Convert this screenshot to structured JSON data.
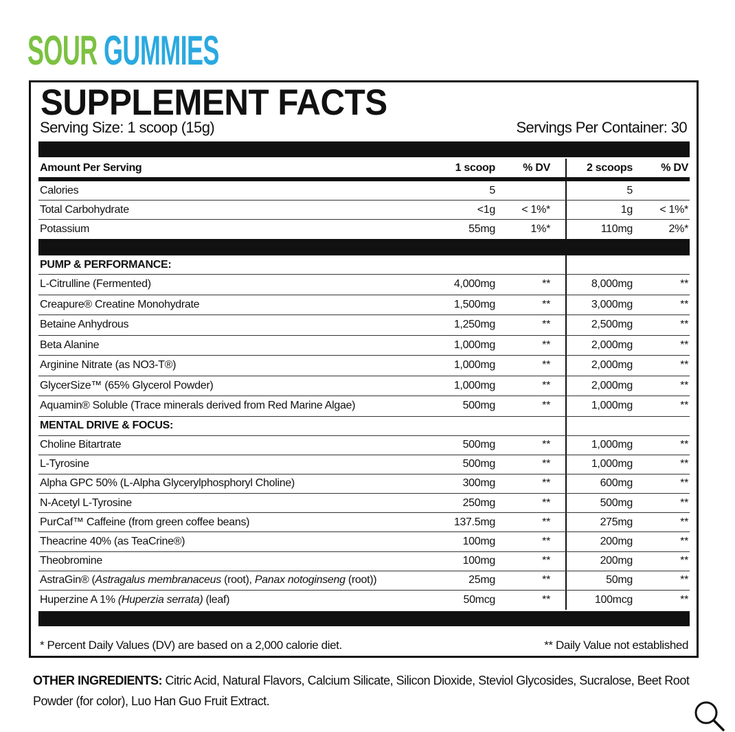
{
  "brand": {
    "word1": "SOUR",
    "word2": "GUMMIES",
    "colors": {
      "word1": "#7cc142",
      "word2": "#2aa9e0"
    }
  },
  "facts": {
    "title": "SUPPLEMENT FACTS",
    "serving_size": "Serving Size: 1 scoop (15g)",
    "servings_per_container": "Servings Per Container: 30",
    "header": {
      "name": "Amount Per Serving",
      "amt1": "1 scoop",
      "dv1": "% DV",
      "amt2": "2 scoops",
      "dv2": "% DV"
    },
    "basic_rows": [
      {
        "name": "Calories",
        "amt1": "5",
        "dv1": "",
        "amt2": "5",
        "dv2": ""
      },
      {
        "name": "Total Carbohydrate",
        "amt1": "<1g",
        "dv1": "< 1%*",
        "amt2": "1g",
        "dv2": "< 1%*"
      },
      {
        "name": "Potassium",
        "amt1": "55mg",
        "dv1": "1%*",
        "amt2": "110mg",
        "dv2": "2%*"
      }
    ],
    "sections": [
      {
        "title": "PUMP & PERFORMANCE:",
        "rows": [
          {
            "name": [
              [
                "L-Citrulline (Fermented)",
                false
              ]
            ],
            "amt1": "4,000mg",
            "dv1": "**",
            "amt2": "8,000mg",
            "dv2": "**"
          },
          {
            "name": [
              [
                "Creapure® Creatine Monohydrate",
                false
              ]
            ],
            "amt1": "1,500mg",
            "dv1": "**",
            "amt2": "3,000mg",
            "dv2": "**"
          },
          {
            "name": [
              [
                "Betaine Anhydrous",
                false
              ]
            ],
            "amt1": "1,250mg",
            "dv1": "**",
            "amt2": "2,500mg",
            "dv2": "**"
          },
          {
            "name": [
              [
                "Beta Alanine",
                false
              ]
            ],
            "amt1": "1,000mg",
            "dv1": "**",
            "amt2": "2,000mg",
            "dv2": "**"
          },
          {
            "name": [
              [
                "Arginine Nitrate (as NO3-T®)",
                false
              ]
            ],
            "amt1": "1,000mg",
            "dv1": "**",
            "amt2": "2,000mg",
            "dv2": "**"
          },
          {
            "name": [
              [
                "GlycerSize™ (65% Glycerol Powder)",
                false
              ]
            ],
            "amt1": "1,000mg",
            "dv1": "**",
            "amt2": "2,000mg",
            "dv2": "**"
          },
          {
            "name": [
              [
                "Aquamin® Soluble (Trace minerals derived from Red Marine Algae)",
                false
              ]
            ],
            "amt1": "500mg",
            "dv1": "**",
            "amt2": "1,000mg",
            "dv2": "**"
          }
        ]
      },
      {
        "title": "MENTAL DRIVE & FOCUS:",
        "rows": [
          {
            "name": [
              [
                "Choline Bitartrate",
                false
              ]
            ],
            "amt1": "500mg",
            "dv1": "**",
            "amt2": "1,000mg",
            "dv2": "**"
          },
          {
            "name": [
              [
                "L-Tyrosine",
                false
              ]
            ],
            "amt1": "500mg",
            "dv1": "**",
            "amt2": "1,000mg",
            "dv2": "**"
          },
          {
            "name": [
              [
                "Alpha GPC 50% (L-Alpha Glycerylphosphoryl Choline)",
                false
              ]
            ],
            "amt1": "300mg",
            "dv1": "**",
            "amt2": "600mg",
            "dv2": "**"
          },
          {
            "name": [
              [
                "N-Acetyl L-Tyrosine",
                false
              ]
            ],
            "amt1": "250mg",
            "dv1": "**",
            "amt2": "500mg",
            "dv2": "**"
          },
          {
            "name": [
              [
                "PurCaf™ Caffeine (from green coffee beans)",
                false
              ]
            ],
            "amt1": "137.5mg",
            "dv1": "**",
            "amt2": "275mg",
            "dv2": "**"
          },
          {
            "name": [
              [
                "Theacrine 40% (as TeaCrine®)",
                false
              ]
            ],
            "amt1": "100mg",
            "dv1": "**",
            "amt2": "200mg",
            "dv2": "**"
          },
          {
            "name": [
              [
                "Theobromine",
                false
              ]
            ],
            "amt1": "100mg",
            "dv1": "**",
            "amt2": "200mg",
            "dv2": "**"
          },
          {
            "name": [
              [
                "AstraGin® (",
                false
              ],
              [
                "Astragalus membranaceus",
                true
              ],
              [
                " (root), ",
                false
              ],
              [
                "Panax notoginseng",
                true
              ],
              [
                " (root))",
                false
              ]
            ],
            "amt1": "25mg",
            "dv1": "**",
            "amt2": "50mg",
            "dv2": "**"
          },
          {
            "name": [
              [
                "Huperzine A 1% ",
                false
              ],
              [
                "(Huperzia serrata)",
                true
              ],
              [
                " (leaf)",
                false
              ]
            ],
            "amt1": "50mcg",
            "dv1": "**",
            "amt2": "100mcg",
            "dv2": "**"
          }
        ]
      }
    ],
    "footnote_left": "* Percent Daily Values (DV) are based on a 2,000 calorie diet.",
    "footnote_right": "** Daily Value not established"
  },
  "other_ingredients": {
    "label": "OTHER INGREDIENTS:",
    "text": " Citric Acid, Natural Flavors, Calcium Silicate, Silicon Dioxide, Steviol Glycosides, Sucralose, Beet Root Powder (for color), Luo Han Guo Fruit Extract."
  },
  "icons": {
    "search": "search-icon"
  }
}
